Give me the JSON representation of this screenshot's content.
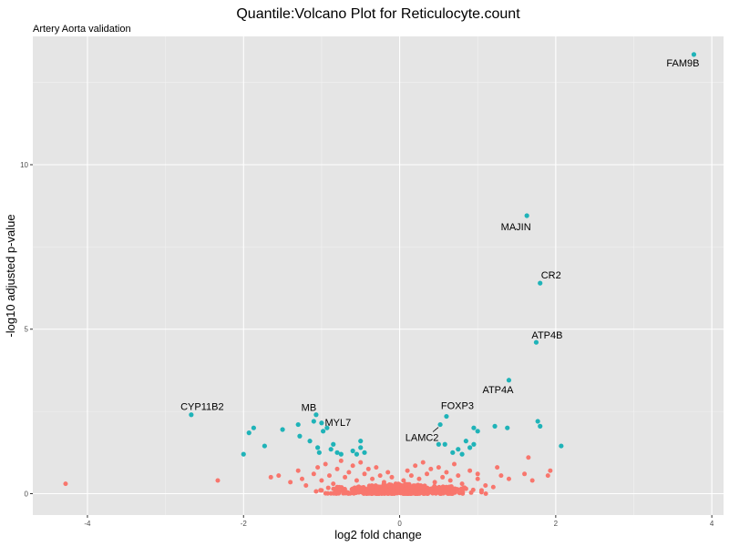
{
  "chart_data": {
    "type": "scatter",
    "title": "Quantile:Volcano Plot for Reticulocyte.count",
    "subtitle": "Artery Aorta validation",
    "xlabel": "log2 fold change",
    "ylabel": "-log10 adjusted p-value",
    "xlim": [
      -4.7,
      4.15
    ],
    "ylim": [
      -0.65,
      13.9
    ],
    "x_ticks": [
      -4,
      -2,
      0,
      2,
      4
    ],
    "y_ticks": [
      0,
      5,
      10
    ],
    "x_tick_labels": [
      "-4",
      "-2",
      "0",
      "2",
      "4"
    ],
    "y_tick_labels": [
      "0",
      "5",
      "10"
    ],
    "grid": true,
    "legend": "none",
    "colors": {
      "significant": "#1fb3b8",
      "not_significant": "#f8766d",
      "panel": "#e5e5e5",
      "grid": "#ffffff"
    },
    "series": [
      {
        "group": "significant",
        "points": [
          {
            "x": 3.77,
            "y": 13.35,
            "label": "FAM9B"
          },
          {
            "x": 1.63,
            "y": 8.45,
            "label": "MAJIN"
          },
          {
            "x": 1.8,
            "y": 6.4,
            "label": "CR2"
          },
          {
            "x": 1.75,
            "y": 4.6,
            "label": "ATP4B"
          },
          {
            "x": 1.4,
            "y": 3.45,
            "label": "ATP4A"
          },
          {
            "x": -2.67,
            "y": 2.4,
            "label": "CYP11B2"
          },
          {
            "x": -1.07,
            "y": 2.4,
            "label": "MB"
          },
          {
            "x": -1.0,
            "y": 2.15,
            "label": "MYL7"
          },
          {
            "x": 0.6,
            "y": 2.35,
            "label": "FOXP3"
          },
          {
            "x": 0.52,
            "y": 2.1,
            "label": "LAMC2"
          },
          {
            "x": -2.0,
            "y": 1.2
          },
          {
            "x": -1.93,
            "y": 1.85
          },
          {
            "x": -1.87,
            "y": 2.0
          },
          {
            "x": -1.73,
            "y": 1.45
          },
          {
            "x": -1.5,
            "y": 1.95
          },
          {
            "x": -1.3,
            "y": 2.1
          },
          {
            "x": -1.28,
            "y": 1.75
          },
          {
            "x": -1.15,
            "y": 1.6
          },
          {
            "x": -1.1,
            "y": 2.2
          },
          {
            "x": -1.05,
            "y": 1.4
          },
          {
            "x": -1.03,
            "y": 1.25
          },
          {
            "x": -0.98,
            "y": 1.9
          },
          {
            "x": -0.93,
            "y": 2.0
          },
          {
            "x": -0.88,
            "y": 1.35
          },
          {
            "x": -0.85,
            "y": 1.5
          },
          {
            "x": -0.8,
            "y": 1.25
          },
          {
            "x": -0.75,
            "y": 1.2
          },
          {
            "x": -0.6,
            "y": 1.3
          },
          {
            "x": -0.55,
            "y": 1.2
          },
          {
            "x": -0.5,
            "y": 1.6
          },
          {
            "x": -0.5,
            "y": 1.4
          },
          {
            "x": -0.45,
            "y": 1.25
          },
          {
            "x": 0.5,
            "y": 1.5
          },
          {
            "x": 0.58,
            "y": 1.5
          },
          {
            "x": 0.68,
            "y": 1.25
          },
          {
            "x": 0.75,
            "y": 1.35
          },
          {
            "x": 0.8,
            "y": 1.2
          },
          {
            "x": 0.85,
            "y": 1.6
          },
          {
            "x": 0.9,
            "y": 1.4
          },
          {
            "x": 0.95,
            "y": 1.5
          },
          {
            "x": 0.95,
            "y": 2.0
          },
          {
            "x": 1.0,
            "y": 1.9
          },
          {
            "x": 1.22,
            "y": 2.05
          },
          {
            "x": 1.38,
            "y": 2.0
          },
          {
            "x": 1.77,
            "y": 2.2
          },
          {
            "x": 1.8,
            "y": 2.05
          },
          {
            "x": 2.07,
            "y": 1.45
          }
        ]
      },
      {
        "group": "not_significant",
        "points": [
          {
            "x": -4.28,
            "y": 0.3
          },
          {
            "x": -2.33,
            "y": 0.4
          },
          {
            "x": -1.65,
            "y": 0.5
          },
          {
            "x": -1.55,
            "y": 0.55
          },
          {
            "x": -1.4,
            "y": 0.35
          },
          {
            "x": -1.3,
            "y": 0.7
          },
          {
            "x": -1.25,
            "y": 0.45
          },
          {
            "x": -1.2,
            "y": 0.25
          },
          {
            "x": -1.1,
            "y": 0.6
          },
          {
            "x": -1.05,
            "y": 0.8
          },
          {
            "x": -1.0,
            "y": 0.4
          },
          {
            "x": -0.95,
            "y": 0.9
          },
          {
            "x": -0.9,
            "y": 0.55
          },
          {
            "x": -0.85,
            "y": 0.3
          },
          {
            "x": -0.8,
            "y": 0.75
          },
          {
            "x": -0.75,
            "y": 1.0
          },
          {
            "x": -0.7,
            "y": 0.5
          },
          {
            "x": -0.65,
            "y": 0.65
          },
          {
            "x": -0.6,
            "y": 0.85
          },
          {
            "x": -0.55,
            "y": 0.4
          },
          {
            "x": -0.5,
            "y": 0.95
          },
          {
            "x": -0.45,
            "y": 0.6
          },
          {
            "x": -0.4,
            "y": 0.75
          },
          {
            "x": -0.35,
            "y": 0.45
          },
          {
            "x": -0.3,
            "y": 0.8
          },
          {
            "x": -0.25,
            "y": 0.55
          },
          {
            "x": -0.2,
            "y": 0.35
          },
          {
            "x": -0.15,
            "y": 0.65
          },
          {
            "x": -0.1,
            "y": 0.5
          },
          {
            "x": -0.05,
            "y": 0.3
          },
          {
            "x": 0.05,
            "y": 0.4
          },
          {
            "x": 0.1,
            "y": 0.7
          },
          {
            "x": 0.15,
            "y": 0.55
          },
          {
            "x": 0.2,
            "y": 0.85
          },
          {
            "x": 0.25,
            "y": 0.45
          },
          {
            "x": 0.3,
            "y": 0.95
          },
          {
            "x": 0.35,
            "y": 0.6
          },
          {
            "x": 0.4,
            "y": 0.75
          },
          {
            "x": 0.45,
            "y": 0.35
          },
          {
            "x": 0.5,
            "y": 0.8
          },
          {
            "x": 0.55,
            "y": 0.5
          },
          {
            "x": 0.6,
            "y": 0.65
          },
          {
            "x": 0.65,
            "y": 0.4
          },
          {
            "x": 0.7,
            "y": 0.9
          },
          {
            "x": 0.75,
            "y": 0.55
          },
          {
            "x": 0.8,
            "y": 0.3
          },
          {
            "x": 0.9,
            "y": 0.7
          },
          {
            "x": 1.0,
            "y": 0.6
          },
          {
            "x": 1.0,
            "y": 0.45
          },
          {
            "x": 1.1,
            "y": 0.25
          },
          {
            "x": 1.2,
            "y": 0.2
          },
          {
            "x": 1.25,
            "y": 0.8
          },
          {
            "x": 1.3,
            "y": 0.55
          },
          {
            "x": 1.4,
            "y": 0.45
          },
          {
            "x": 1.6,
            "y": 0.6
          },
          {
            "x": 1.65,
            "y": 1.1
          },
          {
            "x": 1.7,
            "y": 0.4
          },
          {
            "x": 1.9,
            "y": 0.55
          },
          {
            "x": 1.93,
            "y": 0.7
          },
          {
            "x": -0.6,
            "y": 0.15
          },
          {
            "x": -0.3,
            "y": 0.1
          },
          {
            "x": 0.0,
            "y": 0.05
          },
          {
            "x": 0.2,
            "y": 0.1
          },
          {
            "x": 0.4,
            "y": 0.15
          },
          {
            "x": 0.6,
            "y": 0.2
          },
          {
            "x": -0.8,
            "y": 0.2
          },
          {
            "x": 0.85,
            "y": 0.15
          },
          {
            "x": -1.0,
            "y": 0.1
          },
          {
            "x": 1.05,
            "y": 0.1
          }
        ],
        "dense_band": {
          "x_range": [
            -1.2,
            1.2
          ],
          "y_range": [
            0,
            0.3
          ],
          "count": 450
        }
      }
    ]
  }
}
